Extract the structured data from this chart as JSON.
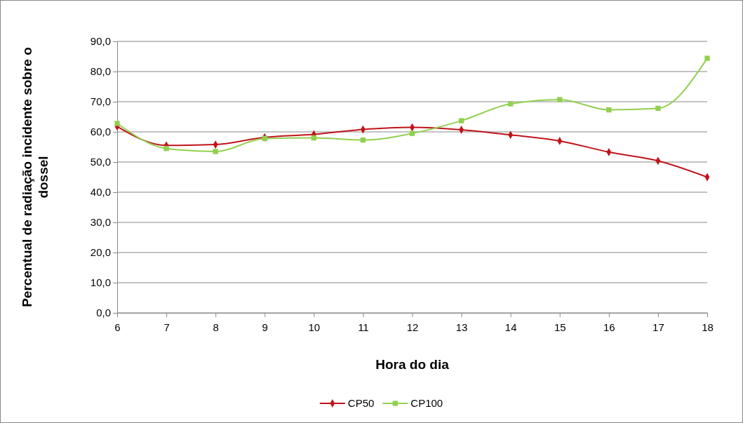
{
  "chart_data": {
    "type": "line",
    "xlabel": "Hora do dia",
    "ylabel": "Percentual de radiação incidente sobre o dossel",
    "x": [
      6,
      7,
      8,
      9,
      10,
      11,
      12,
      13,
      14,
      15,
      16,
      17,
      18
    ],
    "series": [
      {
        "name": "CP50",
        "color": "#c0141b",
        "marker": "diamond",
        "values": [
          61.8,
          55.5,
          55.8,
          58.2,
          59.2,
          60.8,
          61.5,
          60.7,
          59.0,
          57.0,
          53.3,
          50.4,
          45.0
        ]
      },
      {
        "name": "CP100",
        "color": "#92d050",
        "marker": "square",
        "values": [
          62.8,
          54.5,
          53.5,
          57.8,
          58.0,
          57.3,
          59.5,
          63.7,
          69.3,
          70.7,
          67.3,
          67.8,
          84.4
        ]
      }
    ],
    "xlim": [
      6,
      18
    ],
    "xticks": [
      6,
      7,
      8,
      9,
      10,
      11,
      12,
      13,
      14,
      15,
      16,
      17,
      18
    ],
    "ylim": [
      0,
      90
    ],
    "yticks": [
      {
        "value": 0,
        "label": "0,0"
      },
      {
        "value": 10,
        "label": "10,0"
      },
      {
        "value": 20,
        "label": "20,0"
      },
      {
        "value": 30,
        "label": "30,0"
      },
      {
        "value": 40,
        "label": "40,0"
      },
      {
        "value": 50,
        "label": "50,0"
      },
      {
        "value": 60,
        "label": "60,0"
      },
      {
        "value": 70,
        "label": "70,0"
      },
      {
        "value": 80,
        "label": "80,0"
      },
      {
        "value": 90,
        "label": "90,0"
      }
    ],
    "grid": "y",
    "legend": "bottom"
  }
}
